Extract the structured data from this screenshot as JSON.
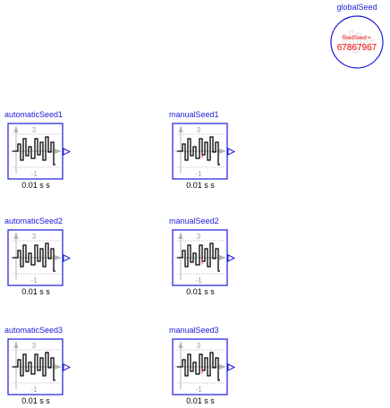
{
  "global_seed": {
    "name": "globalSeed",
    "label": "fixedSeed =",
    "value": "67867967",
    "icon": "global-seed-icon"
  },
  "blocks": [
    {
      "name": "automaticSeed1",
      "param": "0.01 s s",
      "y_max": "3",
      "y_min": "-1",
      "seed_marker": false
    },
    {
      "name": "manualSeed1",
      "param": "0.01 s s",
      "y_max": "3",
      "y_min": "-1",
      "seed_marker": true
    },
    {
      "name": "automaticSeed2",
      "param": "0.01 s s",
      "y_max": "3",
      "y_min": "-1",
      "seed_marker": false
    },
    {
      "name": "manualSeed2",
      "param": "0.01 s s",
      "y_max": "3",
      "y_min": "-1",
      "seed_marker": true
    },
    {
      "name": "automaticSeed3",
      "param": "0.01 s s",
      "y_max": "3",
      "y_min": "-1",
      "seed_marker": false
    },
    {
      "name": "manualSeed3",
      "param": "0.01 s s",
      "y_max": "3",
      "y_min": "-1",
      "seed_marker": true
    }
  ],
  "colors": {
    "frame": "#1a1adc",
    "axis": "#b4b4b4",
    "signal": "#000000",
    "seed": "#ff0000"
  }
}
